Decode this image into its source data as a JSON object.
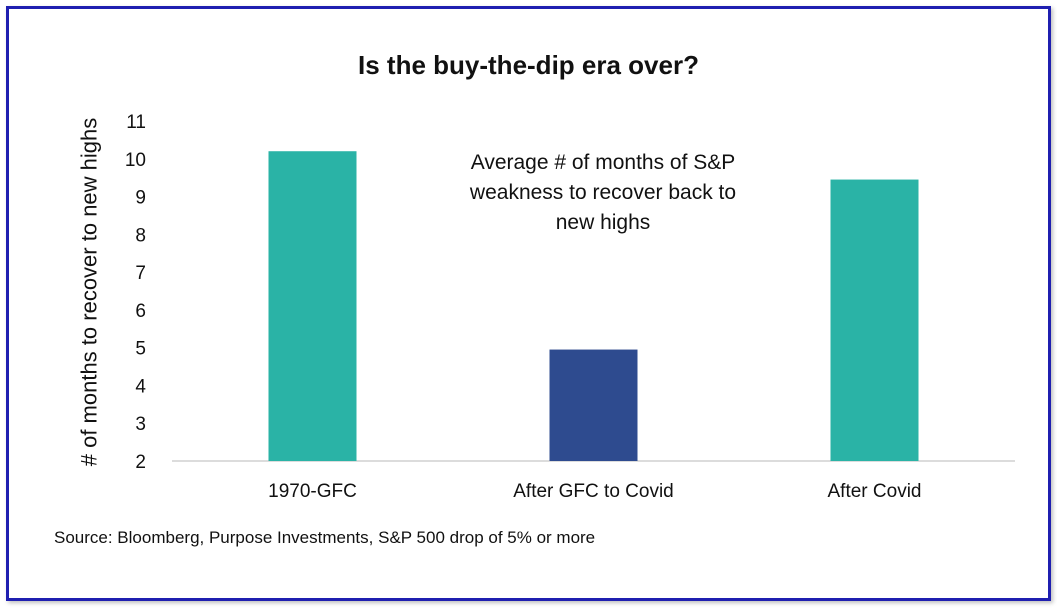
{
  "chart_data": {
    "type": "bar",
    "title": "Is the buy-the-dip era over?",
    "ylabel": "# of months to recover to new highs",
    "xlabel": "",
    "categories": [
      "1970-GFC",
      "After GFC to Covid",
      "After Covid"
    ],
    "values": [
      10.2,
      4.95,
      9.45
    ],
    "bar_colors": [
      "#2ab3a6",
      "#2e4b8f",
      "#2ab3a6"
    ],
    "ylim": [
      2,
      11
    ],
    "yticks": [
      2,
      3,
      4,
      5,
      6,
      7,
      8,
      9,
      10,
      11
    ],
    "grid": false,
    "legend": "none",
    "annotation": "Average # of months of S&P weakness to recover back to new highs"
  },
  "source_note": "Source: Bloomberg, Purpose Investments, S&P 500 drop of 5% or more",
  "colors": {
    "frame_border": "#1f1fb0",
    "axis_line": "#d0d0d0"
  }
}
